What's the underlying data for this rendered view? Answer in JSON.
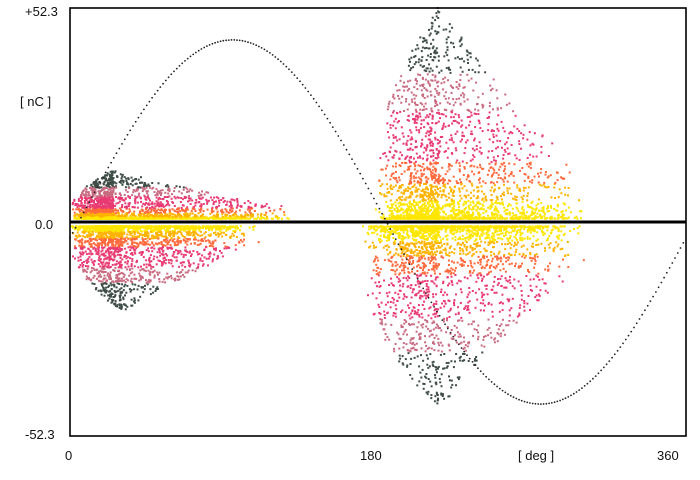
{
  "chart_data": {
    "type": "scatter",
    "title": "",
    "xlabel": "[ deg ]",
    "ylabel": "[ nC ]",
    "xlim": [
      0,
      360
    ],
    "ylim": [
      -52.3,
      52.3
    ],
    "x_ticks": [
      "0",
      "180",
      "360"
    ],
    "y_ticks": [
      "+52.3",
      "0.0",
      "-52.3"
    ],
    "grid": false,
    "legend": "none",
    "colors": {
      "density_low": "#3f4d47",
      "density_mid": "#e83a73",
      "density_high": "#ffe600",
      "reference_wave": "#222222",
      "zero_line": "#000000"
    },
    "reference_sine": {
      "style": "dotted",
      "amplitude": 44.5,
      "positive_peak": [
        95,
        44.5
      ],
      "negative_peak": [
        275,
        -44.5
      ]
    },
    "clusters": [
      {
        "polarity": "positive",
        "x_range": [
          0,
          130
        ],
        "peak_x": 25,
        "max_y": 12
      },
      {
        "polarity": "negative",
        "x_range": [
          0,
          110
        ],
        "peak_x": 30,
        "max_y": -21
      },
      {
        "polarity": "positive",
        "x_range": [
          178,
          300
        ],
        "peak_x": 215,
        "max_y": 52
      },
      {
        "polarity": "negative",
        "x_range": [
          170,
          300
        ],
        "peak_x": 215,
        "max_y": -45
      }
    ]
  }
}
